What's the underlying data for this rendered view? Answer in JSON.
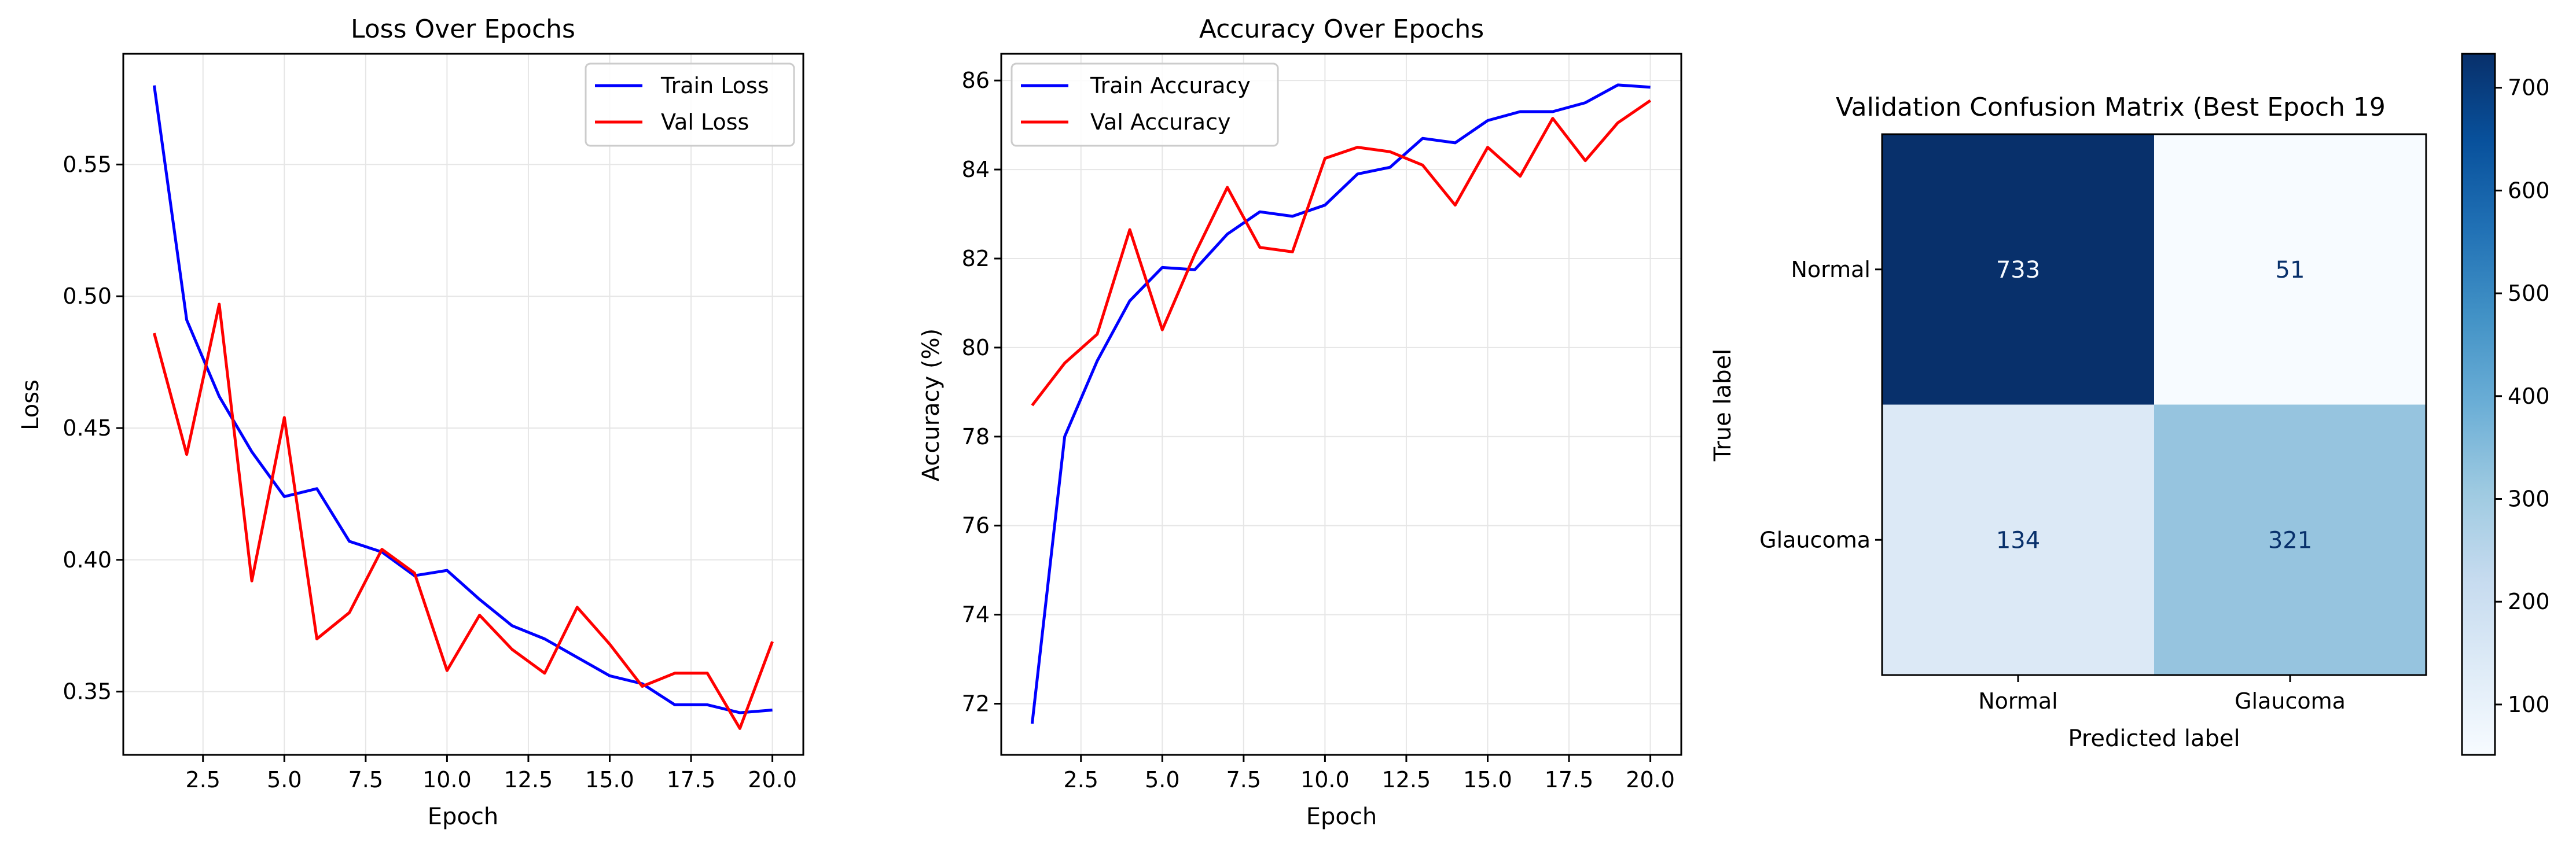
{
  "chart_data": [
    {
      "type": "line",
      "title": "Loss Over Epochs",
      "xlabel": "Epoch",
      "ylabel": "Loss",
      "xlim": [
        0.05,
        20.95
      ],
      "ylim": [
        0.326,
        0.592
      ],
      "xticks": [
        2.5,
        5.0,
        7.5,
        10.0,
        12.5,
        15.0,
        17.5,
        20.0
      ],
      "xtick_labels": [
        "2.5",
        "5.0",
        "7.5",
        "10.0",
        "12.5",
        "15.0",
        "17.5",
        "20.0"
      ],
      "yticks": [
        0.35,
        0.4,
        0.45,
        0.5,
        0.55
      ],
      "ytick_labels": [
        "0.35",
        "0.40",
        "0.45",
        "0.50",
        "0.55"
      ],
      "grid": true,
      "legend": "upper-right",
      "x": [
        1,
        2,
        3,
        4,
        5,
        6,
        7,
        8,
        9,
        10,
        11,
        12,
        13,
        14,
        15,
        16,
        17,
        18,
        19,
        20
      ],
      "series": [
        {
          "name": "Train Loss",
          "color": "#0000ff",
          "values": [
            0.58,
            0.491,
            0.462,
            0.441,
            0.424,
            0.427,
            0.407,
            0.403,
            0.394,
            0.396,
            0.385,
            0.375,
            0.37,
            0.363,
            0.356,
            0.353,
            0.345,
            0.345,
            0.342,
            0.343
          ]
        },
        {
          "name": "Val Loss",
          "color": "#ff0000",
          "values": [
            0.486,
            0.44,
            0.497,
            0.392,
            0.454,
            0.37,
            0.38,
            0.404,
            0.395,
            0.358,
            0.379,
            0.366,
            0.357,
            0.382,
            0.368,
            0.352,
            0.357,
            0.357,
            0.336,
            0.369
          ]
        }
      ]
    },
    {
      "type": "line",
      "title": "Accuracy Over Epochs",
      "xlabel": "Epoch",
      "ylabel": "Accuracy (%)",
      "xlim": [
        0.05,
        20.95
      ],
      "ylim": [
        70.85,
        86.6
      ],
      "xticks": [
        2.5,
        5.0,
        7.5,
        10.0,
        12.5,
        15.0,
        17.5,
        20.0
      ],
      "xtick_labels": [
        "2.5",
        "5.0",
        "7.5",
        "10.0",
        "12.5",
        "15.0",
        "17.5",
        "20.0"
      ],
      "yticks": [
        72,
        74,
        76,
        78,
        80,
        82,
        84,
        86
      ],
      "ytick_labels": [
        "72",
        "74",
        "76",
        "78",
        "80",
        "82",
        "84",
        "86"
      ],
      "grid": true,
      "legend": "upper-left",
      "x": [
        1,
        2,
        3,
        4,
        5,
        6,
        7,
        8,
        9,
        10,
        11,
        12,
        13,
        14,
        15,
        16,
        17,
        18,
        19,
        20
      ],
      "series": [
        {
          "name": "Train Accuracy",
          "color": "#0000ff",
          "values": [
            71.55,
            78.0,
            79.7,
            81.05,
            81.8,
            81.75,
            82.55,
            83.05,
            82.95,
            83.2,
            83.9,
            84.05,
            84.7,
            84.6,
            85.1,
            85.3,
            85.3,
            85.5,
            85.9,
            85.85
          ]
        },
        {
          "name": "Val Accuracy",
          "color": "#ff0000",
          "values": [
            78.7,
            79.65,
            80.3,
            82.65,
            80.4,
            82.1,
            83.6,
            82.25,
            82.15,
            84.25,
            84.5,
            84.4,
            84.1,
            83.2,
            84.5,
            83.85,
            85.15,
            84.2,
            85.05,
            85.55
          ]
        }
      ]
    },
    {
      "type": "heatmap",
      "title": "Validation Confusion Matrix (Best Epoch 19",
      "xlabel": "Predicted label",
      "ylabel": "True label",
      "x_categories": [
        "Normal",
        "Glaucoma"
      ],
      "y_categories": [
        "Normal",
        "Glaucoma"
      ],
      "values": [
        [
          733,
          51
        ],
        [
          134,
          321
        ]
      ],
      "colormap": "Blues",
      "colorbar": {
        "range": [
          51,
          733
        ],
        "ticks": [
          100,
          200,
          300,
          400,
          500,
          600,
          700
        ],
        "tick_labels": [
          "100",
          "200",
          "300",
          "400",
          "500",
          "600",
          "700"
        ]
      },
      "cell_colors": [
        [
          "#08306b",
          "#f7fbff"
        ],
        [
          "#dce9f6",
          "#96c4df"
        ]
      ],
      "text_colors": [
        [
          "#f7fbff",
          "#08306b"
        ],
        [
          "#08306b",
          "#08306b"
        ]
      ]
    }
  ]
}
